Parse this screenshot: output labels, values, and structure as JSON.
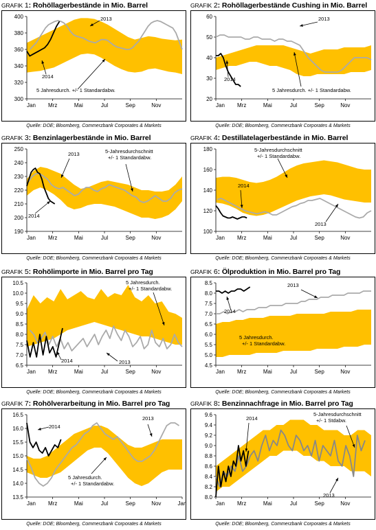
{
  "source_note": "Quelle: DOE; Bloomberg, Commerzbank Corporates & Markets",
  "colors": {
    "band": "#FFC000",
    "line2014": "#000000",
    "line2013": "#AAAAAA",
    "line2013_dark": "#888888"
  },
  "panels": [
    {
      "prefix": "GRAFIK",
      "number": "1",
      "title": "Rohöllagerbestände in Mio. Barrel"
    },
    {
      "prefix": "GRAFIK",
      "number": "2",
      "title": "Rohöllagerbestände Cushing in Mio. Barrel"
    },
    {
      "prefix": "GRAFIK",
      "number": "3",
      "title": "Benzinlagerbestände in Mio. Barrel"
    },
    {
      "prefix": "GRAFIK",
      "number": "4",
      "title": "Destillatelagerbestände in Mio. Barrel"
    },
    {
      "prefix": "GRAFIK",
      "number": "5",
      "title": "Rohölimporte in Mio. Barrel pro Tag"
    },
    {
      "prefix": "GRAFIK",
      "number": "6",
      "title": "Ölproduktion in Mio. Barrel pro Tag"
    },
    {
      "prefix": "GRAFIK",
      "number": "7",
      "title": "Rohölverarbeitung in Mio. Barrel pro Tag"
    },
    {
      "prefix": "GRAFIK",
      "number": "8",
      "title": "Benzinnachfrage in Mio. Barrel pro Tag"
    }
  ],
  "chart_data": [
    {
      "type": "area",
      "title": "Rohöllagerbestände in Mio. Barrel",
      "ylim": [
        300,
        400
      ],
      "yticks": [
        300,
        320,
        340,
        360,
        380,
        400
      ],
      "xticks": [
        "Jan",
        "Mrz",
        "Mai",
        "Jul",
        "Sep",
        "Nov"
      ],
      "band_upper": [
        368,
        372,
        376,
        380,
        384,
        388,
        392,
        396,
        398,
        398,
        397,
        394,
        390,
        385,
        380,
        375,
        372,
        374,
        376,
        375,
        373,
        372,
        371,
        372
      ],
      "band_lower": [
        332,
        333,
        334,
        336,
        338,
        342,
        346,
        350,
        354,
        355,
        354,
        350,
        345,
        340,
        336,
        333,
        332,
        333,
        336,
        337,
        335,
        333,
        332,
        330
      ],
      "series": [
        {
          "name": "2014",
          "values": [
            358,
            352,
            354,
            356,
            358,
            360,
            362,
            366,
            372,
            380,
            388,
            394
          ]
        },
        {
          "name": "2013",
          "values": [
            360,
            364,
            368,
            374,
            380,
            386,
            390,
            392,
            394,
            395,
            394,
            392,
            388,
            382,
            378,
            376,
            375,
            374,
            372,
            370,
            369,
            368,
            370,
            372,
            372,
            371,
            368,
            365,
            363,
            362,
            361,
            360,
            360,
            362,
            366,
            370,
            376,
            382,
            388,
            392,
            394,
            395,
            394,
            392,
            390,
            388,
            386,
            380,
            370,
            360
          ]
        }
      ],
      "annotations": [
        "2013",
        "2014",
        "5 Jahresdurch. +/- 1 Standardabw."
      ]
    },
    {
      "type": "area",
      "title": "Rohöllagerbestände Cushing in Mio. Barrel",
      "ylim": [
        20,
        60
      ],
      "yticks": [
        20,
        30,
        40,
        50,
        60
      ],
      "xticks": [
        "Jan",
        "Mrz",
        "Mai",
        "Jul",
        "Sep",
        "Nov"
      ],
      "band_upper": [
        40,
        41,
        42,
        43,
        44,
        45,
        46,
        46,
        46,
        46,
        46,
        45,
        44,
        43,
        42,
        43,
        44,
        44,
        44,
        45,
        45,
        45,
        45,
        46
      ],
      "band_lower": [
        34,
        35,
        36,
        36,
        37,
        38,
        38,
        37,
        36,
        36,
        35,
        34,
        32,
        31,
        31,
        32,
        32,
        32,
        32,
        32,
        33,
        33,
        33,
        34
      ],
      "series": [
        {
          "name": "2014",
          "values": [
            41,
            41,
            42,
            40,
            36,
            33,
            31,
            29,
            27,
            27,
            26
          ]
        },
        {
          "name": "2013",
          "values": [
            50,
            51,
            51,
            50,
            50,
            50,
            50,
            49,
            49,
            50,
            50,
            49,
            49,
            49,
            48,
            49,
            49,
            48,
            48,
            47,
            46,
            43,
            40,
            38,
            36,
            34,
            33,
            33,
            33,
            33,
            34,
            36,
            38,
            40,
            40,
            40,
            40,
            39
          ]
        }
      ],
      "annotations": [
        "2013",
        "2014",
        "5 Jahresdurch. +/- 1 Standardabw."
      ]
    },
    {
      "type": "area",
      "title": "Benzinlagerbestände in Mio. Barrel",
      "ylim": [
        190,
        250
      ],
      "yticks": [
        190,
        200,
        210,
        220,
        230,
        240,
        250
      ],
      "xticks": [
        "Jan",
        "Mrz",
        "Mai",
        "Jul",
        "Sep",
        "Nov"
      ],
      "band_upper": [
        228,
        234,
        237,
        236,
        234,
        232,
        228,
        224,
        221,
        222,
        224,
        226,
        227,
        226,
        225,
        224,
        222,
        220,
        220,
        219,
        219,
        220,
        224,
        230
      ],
      "band_lower": [
        216,
        220,
        222,
        220,
        217,
        213,
        208,
        206,
        207,
        209,
        210,
        210,
        209,
        208,
        206,
        204,
        202,
        200,
        200,
        199,
        200,
        202,
        206,
        212
      ],
      "series": [
        {
          "name": "2014",
          "values": [
            223,
            228,
            233,
            235,
            236,
            233,
            232,
            228,
            222,
            218,
            214,
            212,
            211,
            210
          ]
        },
        {
          "name": "2013",
          "values": [
            226,
            230,
            232,
            232,
            230,
            228,
            224,
            222,
            221,
            222,
            220,
            218,
            216,
            217,
            220,
            222,
            222,
            220,
            219,
            221,
            222,
            224,
            223,
            222,
            221,
            220,
            218,
            216,
            215,
            212,
            211,
            212,
            214,
            216,
            214,
            212,
            212,
            214,
            218,
            220,
            221
          ]
        }
      ],
      "annotations": [
        "2013",
        "2014",
        "5-Jahresdurchschnitt +/- 1 Standardabw."
      ]
    },
    {
      "type": "area",
      "title": "Destillatelagerbestände in Mio. Barrel",
      "ylim": [
        100,
        180
      ],
      "yticks": [
        100,
        120,
        140,
        160,
        180
      ],
      "xticks": [
        "Jan",
        "Mrz",
        "Mai",
        "Jul",
        "Sep",
        "Nov"
      ],
      "band_upper": [
        152,
        153,
        153,
        152,
        150,
        148,
        147,
        148,
        150,
        153,
        157,
        161,
        164,
        166,
        167,
        168,
        169,
        168,
        167,
        165,
        163,
        161,
        160,
        160
      ],
      "band_lower": [
        128,
        127,
        125,
        122,
        118,
        116,
        115,
        116,
        118,
        121,
        124,
        127,
        130,
        132,
        134,
        135,
        136,
        135,
        133,
        131,
        130,
        129,
        128,
        128
      ],
      "series": [
        {
          "name": "2014",
          "values": [
            125,
            122,
            118,
            115,
            114,
            113,
            113,
            114,
            113,
            112,
            113,
            114,
            114,
            113
          ]
        },
        {
          "name": "2013",
          "values": [
            131,
            132,
            130,
            128,
            126,
            124,
            122,
            120,
            119,
            118,
            117,
            118,
            119,
            118,
            116,
            116,
            118,
            120,
            122,
            124,
            125,
            127,
            128,
            130,
            130,
            131,
            132,
            130,
            128,
            126,
            124,
            122,
            120,
            118,
            116,
            114,
            113,
            114,
            118,
            120
          ]
        }
      ],
      "annotations": [
        "5-Jahresdurchschnitt +/- 1 Standardabw.",
        "2014",
        "2013"
      ]
    },
    {
      "type": "area",
      "title": "Rohölimporte in Mio. Barrel pro Tag",
      "ylim": [
        6.5,
        10.5
      ],
      "yticks": [
        6.5,
        7.0,
        7.5,
        8.0,
        8.5,
        9.0,
        9.5,
        10.0,
        10.5
      ],
      "xticks": [
        "Jan",
        "Mrz",
        "Mai",
        "Jul",
        "Sep",
        "Nov"
      ],
      "band_upper": [
        9.2,
        9.9,
        9.5,
        9.8,
        9.6,
        10.2,
        9.7,
        9.9,
        10.1,
        9.8,
        9.7,
        10.2,
        9.8,
        10.0,
        9.9,
        10.4,
        9.8,
        9.6,
        9.9,
        9.5,
        9.6,
        9.1,
        9.0,
        8.8
      ],
      "band_lower": [
        7.4,
        7.5,
        7.6,
        7.7,
        7.8,
        8.0,
        8.2,
        8.3,
        8.4,
        8.5,
        8.6,
        8.5,
        8.4,
        8.3,
        8.2,
        8.1,
        8.0,
        7.9,
        7.9,
        7.8,
        7.7,
        7.6,
        7.5,
        7.5
      ],
      "series": [
        {
          "name": "2014",
          "values": [
            7.7,
            6.9,
            7.6,
            6.9,
            8.0,
            7.0,
            7.9,
            7.1,
            7.4,
            6.9,
            7.6,
            8.3
          ]
        },
        {
          "name": "2013",
          "values": [
            8.2,
            8.0,
            7.6,
            7.8,
            8.1,
            7.5,
            7.9,
            7.4,
            7.8,
            7.3,
            7.6,
            7.2,
            7.4,
            7.6,
            7.8,
            7.4,
            7.7,
            8.0,
            7.5,
            7.9,
            8.2,
            7.8,
            8.4,
            8.0,
            7.7,
            8.2,
            7.9,
            7.4,
            7.6,
            7.9,
            7.3,
            7.5,
            8.2,
            7.6,
            7.4,
            7.8,
            7.3,
            7.5,
            8.0,
            7.6,
            7.4
          ]
        }
      ],
      "annotations": [
        "5 Jahresdurch. +/- 1 Standardabw.",
        "2014",
        "2013"
      ]
    },
    {
      "type": "area",
      "title": "Ölproduktion in Mio. Barrel pro Tag",
      "ylim": [
        4.5,
        8.5
      ],
      "yticks": [
        4.5,
        5.0,
        5.5,
        6.0,
        6.5,
        7.0,
        7.5,
        8.0,
        8.5
      ],
      "xticks": [
        "Jan",
        "Mrz",
        "Mai",
        "Jul",
        "Sep",
        "Nov"
      ],
      "band_upper": [
        6.5,
        6.6,
        6.6,
        6.7,
        6.7,
        6.8,
        6.8,
        6.8,
        6.9,
        6.9,
        6.9,
        6.9,
        7.0,
        7.0,
        7.0,
        7.0,
        7.0,
        7.1,
        7.1,
        7.1,
        7.1,
        7.2,
        7.2,
        7.2
      ],
      "band_lower": [
        4.9,
        4.9,
        5.0,
        5.0,
        5.0,
        5.0,
        5.1,
        5.1,
        5.1,
        5.1,
        5.2,
        5.2,
        5.2,
        5.2,
        5.2,
        5.3,
        5.3,
        5.3,
        5.3,
        5.4,
        5.4,
        5.4,
        5.5,
        5.5
      ],
      "series": [
        {
          "name": "2014",
          "values": [
            8.1,
            8.1,
            8.0,
            8.1,
            8.0,
            8.1,
            8.1,
            8.2,
            8.2,
            8.1,
            8.2,
            8.3
          ]
        },
        {
          "name": "2013",
          "values": [
            7.0,
            7.0,
            7.1,
            7.0,
            7.1,
            7.1,
            7.2,
            7.1,
            7.2,
            7.2,
            7.2,
            7.3,
            7.3,
            7.3,
            7.4,
            7.4,
            7.4,
            7.4,
            7.5,
            7.5,
            7.5,
            7.5,
            7.6,
            7.6,
            7.7,
            7.7,
            7.7,
            7.8,
            7.8,
            7.8,
            7.9,
            7.9,
            7.9,
            7.9,
            8.0,
            8.0,
            8.0,
            8.0,
            8.1,
            8.1,
            8.1
          ]
        }
      ],
      "annotations": [
        "2013",
        "2014",
        "5 Jahresdurch. +/- 1 Standardabw."
      ]
    },
    {
      "type": "area",
      "title": "Rohölverarbeitung in Mio. Barrel pro Tag",
      "ylim": [
        13.5,
        16.5
      ],
      "yticks": [
        13.5,
        14.0,
        14.5,
        15.0,
        15.5,
        16.0,
        16.5
      ],
      "xticks": [
        "Jan",
        "Mrz",
        "Mai",
        "Jul",
        "Sep",
        "Nov",
        "Jan"
      ],
      "band_upper": [
        15.0,
        14.9,
        14.9,
        15.0,
        15.2,
        15.4,
        15.6,
        15.8,
        15.9,
        16.0,
        16.1,
        16.1,
        16.0,
        15.8,
        15.6,
        15.4,
        15.3,
        15.3,
        15.4,
        15.5,
        15.6,
        15.6,
        15.6,
        15.6
      ],
      "band_lower": [
        14.4,
        14.3,
        14.2,
        14.2,
        14.3,
        14.4,
        14.6,
        14.8,
        15.0,
        15.2,
        15.3,
        15.3,
        15.1,
        14.8,
        14.5,
        14.2,
        14.0,
        13.9,
        14.0,
        14.2,
        14.4,
        14.5,
        14.5,
        14.5
      ],
      "series": [
        {
          "name": "2014",
          "values": [
            16.2,
            15.5,
            15.3,
            15.5,
            15.2,
            15.1,
            15.3,
            15.0,
            15.2,
            15.4,
            15.3,
            15.6
          ]
        },
        {
          "name": "2013",
          "values": [
            14.9,
            14.6,
            14.2,
            14.0,
            13.9,
            14.0,
            14.2,
            14.5,
            14.7,
            14.9,
            15.1,
            15.3,
            15.4,
            15.6,
            15.8,
            15.9,
            16.1,
            16.2,
            16.0,
            15.8,
            15.7,
            15.6,
            15.7,
            15.5,
            15.3,
            15.1,
            14.9,
            14.8,
            14.8,
            14.9,
            15.0,
            15.2,
            15.5,
            15.8,
            16.1,
            16.2,
            16.2,
            16.1
          ]
        }
      ],
      "annotations": [
        "2014",
        "2013",
        "5 Jahresdurch. +/- 1 Standardabw."
      ]
    },
    {
      "type": "area",
      "title": "Benzinnachfrage in Mio. Barrel pro Tag",
      "ylim": [
        8.0,
        9.6
      ],
      "yticks": [
        8.0,
        8.2,
        8.4,
        8.6,
        8.8,
        9.0,
        9.2,
        9.4,
        9.6
      ],
      "xticks": [
        "Jan",
        "Mrz",
        "Mai",
        "Jul",
        "Sep",
        "Nov"
      ],
      "band_upper": [
        8.6,
        8.7,
        8.8,
        8.9,
        9.0,
        9.1,
        9.2,
        9.3,
        9.3,
        9.4,
        9.4,
        9.5,
        9.5,
        9.5,
        9.4,
        9.4,
        9.3,
        9.3,
        9.3,
        9.2,
        9.2,
        9.3,
        9.3,
        9.2
      ],
      "band_lower": [
        8.1,
        8.2,
        8.2,
        8.3,
        8.4,
        8.5,
        8.6,
        8.7,
        8.8,
        8.8,
        8.9,
        8.9,
        8.9,
        8.8,
        8.8,
        8.7,
        8.7,
        8.6,
        8.6,
        8.6,
        8.5,
        8.5,
        8.5,
        8.4
      ],
      "series": [
        {
          "name": "2014",
          "values": [
            8.0,
            8.6,
            8.2,
            8.5,
            8.3,
            8.6,
            8.4,
            8.7,
            8.6,
            9.0,
            8.7,
            8.9,
            8.6,
            8.9
          ]
        },
        {
          "name": "2013",
          "values": [
            8.4,
            8.2,
            8.5,
            8.4,
            8.6,
            8.5,
            8.8,
            8.5,
            8.6,
            8.8,
            8.9,
            8.7,
            9.0,
            9.2,
            8.9,
            9.1,
            9.0,
            9.3,
            9.2,
            9.0,
            8.9,
            9.2,
            9.1,
            8.9,
            9.0,
            8.8,
            9.1,
            8.7,
            9.0,
            8.9,
            8.8,
            9.1,
            8.7,
            8.6,
            9.0,
            8.8,
            8.4,
            9.2,
            8.9,
            9.1
          ]
        }
      ],
      "annotations": [
        "5-Jahresdurchschnitt +/- 1 Stdabw.",
        "2014",
        "2013"
      ]
    }
  ]
}
